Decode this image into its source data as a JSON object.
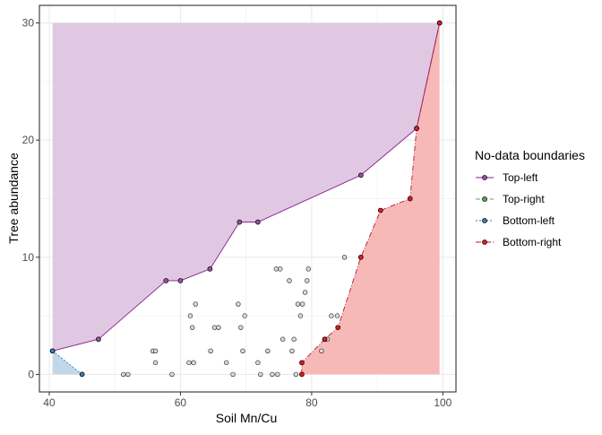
{
  "chart_data": {
    "type": "scatter",
    "xlabel": "Soil Mn/Cu",
    "ylabel": "Tree abundance",
    "xlim": [
      38.5,
      102
    ],
    "ylim": [
      -1.5,
      31.5
    ],
    "x_ticks": [
      40,
      60,
      80,
      100
    ],
    "x_tick_labels": [
      "40",
      "60",
      "80",
      "100"
    ],
    "y_ticks": [
      0,
      10,
      20,
      30
    ],
    "y_tick_labels": [
      "0",
      "10",
      "20",
      "30"
    ],
    "grid": true,
    "legend": {
      "title": "No-data boundaries",
      "position": "right"
    },
    "colors": {
      "top_left_fill": "#e0c8e3",
      "top_left_line": "#8b1a8b",
      "top_left_point": "#9c4fa7",
      "top_right_point": "#4daf4a",
      "bottom_left_fill": "#c2d7e8",
      "bottom_left_line": "#377eb8",
      "bottom_left_point": "#377eb8",
      "bottom_right_fill": "#f7b8b8",
      "bottom_right_line": "#b2182b",
      "bottom_right_point": "#e41a1c",
      "grid": "#ebebeb",
      "panel_border": "#333333",
      "observation_point": "#d9d9d9"
    },
    "series": [
      {
        "name": "Top-left",
        "points": [
          [
            40.5,
            2
          ],
          [
            47.5,
            3
          ],
          [
            57.8,
            8
          ],
          [
            60,
            8
          ],
          [
            64.5,
            9
          ],
          [
            69,
            13
          ],
          [
            71.8,
            13
          ],
          [
            87.5,
            17
          ],
          [
            96,
            21
          ],
          [
            99.5,
            30
          ]
        ]
      },
      {
        "name": "Top-right",
        "points": []
      },
      {
        "name": "Bottom-left",
        "points": [
          [
            40.5,
            2
          ],
          [
            45,
            0
          ]
        ]
      },
      {
        "name": "Bottom-right",
        "points": [
          [
            78.5,
            0
          ],
          [
            78.5,
            1
          ],
          [
            82,
            3
          ],
          [
            84,
            4
          ],
          [
            87.5,
            10
          ],
          [
            90.5,
            14
          ],
          [
            95,
            15
          ],
          [
            96,
            21
          ],
          [
            99.5,
            30
          ]
        ]
      }
    ],
    "observations": [
      [
        51.3,
        0
      ],
      [
        52,
        0
      ],
      [
        55.8,
        2
      ],
      [
        56.2,
        1
      ],
      [
        56.2,
        2
      ],
      [
        58.7,
        0
      ],
      [
        61.3,
        1
      ],
      [
        61.5,
        5
      ],
      [
        61.8,
        4
      ],
      [
        62,
        1
      ],
      [
        62.3,
        6
      ],
      [
        64.6,
        2
      ],
      [
        65.2,
        4
      ],
      [
        65.8,
        4
      ],
      [
        67,
        1
      ],
      [
        68,
        0
      ],
      [
        68.8,
        6
      ],
      [
        69.2,
        4
      ],
      [
        69.5,
        2
      ],
      [
        69.8,
        5
      ],
      [
        71.8,
        1
      ],
      [
        72.2,
        0
      ],
      [
        73.3,
        2
      ],
      [
        74,
        0
      ],
      [
        74.6,
        9
      ],
      [
        74.8,
        0
      ],
      [
        75.2,
        9
      ],
      [
        75.6,
        3
      ],
      [
        76.6,
        8
      ],
      [
        77,
        2
      ],
      [
        77.3,
        3
      ],
      [
        77.6,
        0
      ],
      [
        77.9,
        6
      ],
      [
        78.3,
        5
      ],
      [
        78.6,
        6
      ],
      [
        79,
        7
      ],
      [
        79.3,
        8
      ],
      [
        79.5,
        9
      ],
      [
        81.5,
        2
      ],
      [
        82,
        3
      ],
      [
        82.4,
        3
      ],
      [
        83,
        5
      ],
      [
        83.9,
        5
      ],
      [
        85,
        10
      ]
    ]
  }
}
